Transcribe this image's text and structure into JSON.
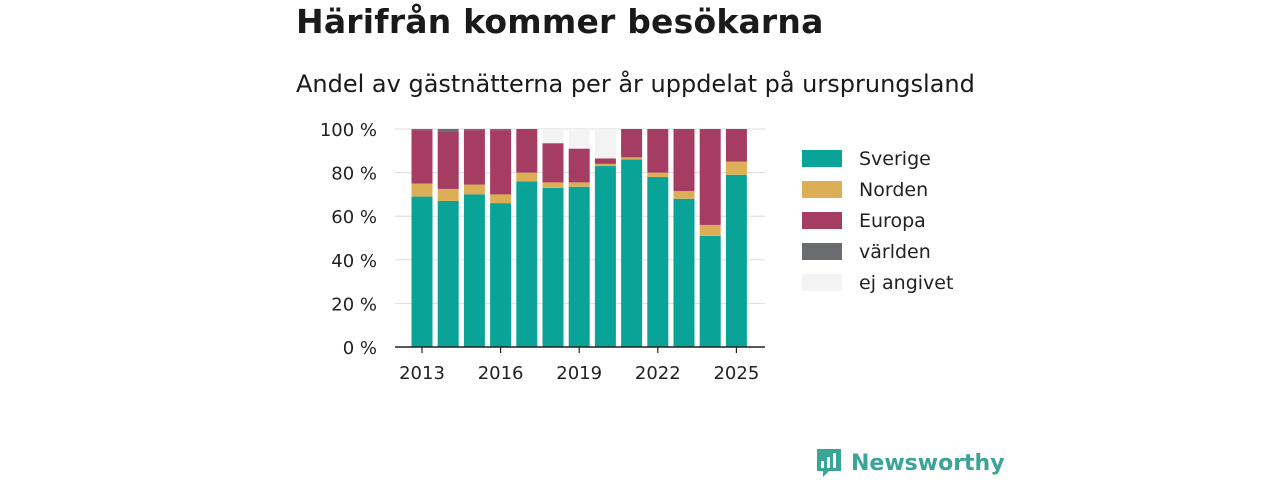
{
  "title": "Härifrån kommer besökarna",
  "subtitle": "Andel av gästnätterna per år uppdelat på ursprungsland",
  "brand": {
    "name": "Newsworthy",
    "logo_icon": "bar-chart-logo-icon",
    "color": "#3aa597"
  },
  "chart_data": {
    "type": "bar",
    "stacked": true,
    "x": [
      2013,
      2014,
      2015,
      2016,
      2017,
      2018,
      2019,
      2020,
      2021,
      2022,
      2023,
      2024,
      2025
    ],
    "x_ticks": [
      "2013",
      "2016",
      "2019",
      "2022",
      "2025"
    ],
    "y_ticks": [
      "0 %",
      "20 %",
      "40 %",
      "60 %",
      "80 %",
      "100 %"
    ],
    "ylim": [
      0,
      100
    ],
    "grid": true,
    "legend_position": "right",
    "series": [
      {
        "name": "Sverige",
        "color": "#0aa398",
        "values": [
          69,
          67,
          70,
          66,
          76,
          73,
          73.5,
          83,
          86,
          78,
          68,
          51,
          79
        ]
      },
      {
        "name": "Norden",
        "color": "#dcaf56",
        "values": [
          6,
          5.5,
          4.5,
          4,
          4,
          2.5,
          2,
          1,
          1,
          2,
          3.5,
          5,
          6
        ]
      },
      {
        "name": "Europa",
        "color": "#a53d62",
        "values": [
          24.5,
          26.5,
          25,
          29.5,
          20,
          18,
          15.5,
          2.5,
          13,
          20,
          28.5,
          44,
          15
        ]
      },
      {
        "name": "världen",
        "color": "#6b6c70",
        "values": [
          0.5,
          1,
          0.5,
          0.5,
          0,
          0,
          0,
          0,
          0,
          0,
          0,
          0,
          0
        ]
      },
      {
        "name": "ej angivet",
        "color": "#f4f3f3",
        "values": [
          0,
          0,
          0,
          0,
          0,
          6.5,
          9,
          13.5,
          0,
          0,
          0,
          0,
          0
        ]
      }
    ]
  }
}
